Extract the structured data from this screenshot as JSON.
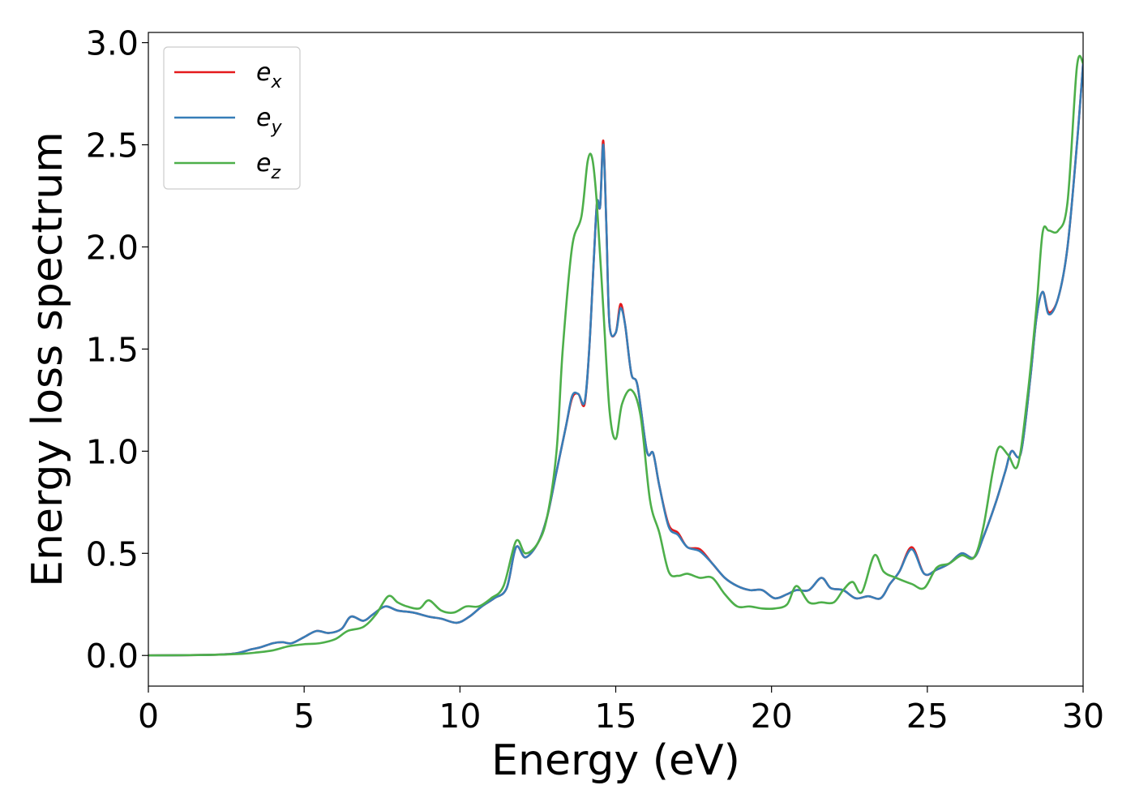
{
  "chart_data": {
    "type": "line",
    "xlabel": "Energy (eV)",
    "ylabel": "Energy loss spectrum",
    "xlim": [
      0,
      30
    ],
    "ylim": [
      -0.15,
      3.05
    ],
    "xticks": [
      0,
      5,
      10,
      15,
      20,
      25,
      30
    ],
    "xtick_labels": [
      "0",
      "5",
      "10",
      "15",
      "20",
      "25",
      "30"
    ],
    "yticks": [
      0.0,
      0.5,
      1.0,
      1.5,
      2.0,
      2.5,
      3.0
    ],
    "ytick_labels": [
      "0.0",
      "0.5",
      "1.0",
      "1.5",
      "2.0",
      "2.5",
      "3.0"
    ],
    "grid": false,
    "legend_position": "upper-left",
    "series": [
      {
        "name": "e_x",
        "label_base": "e",
        "label_sub": "x",
        "color": "#e41a1c",
        "x": [
          0,
          2,
          2.8,
          3.3,
          3.6,
          4.0,
          4.3,
          4.6,
          5.0,
          5.4,
          5.8,
          6.2,
          6.5,
          6.9,
          7.2,
          7.6,
          8.0,
          8.5,
          9.0,
          9.4,
          9.9,
          10.3,
          10.7,
          11.1,
          11.5,
          11.8,
          12.1,
          12.5,
          12.8,
          13.1,
          13.4,
          13.6,
          13.8,
          14.0,
          14.15,
          14.3,
          14.4,
          14.5,
          14.6,
          14.7,
          14.8,
          15.0,
          15.15,
          15.3,
          15.5,
          15.7,
          16.0,
          16.2,
          16.4,
          16.7,
          17.0,
          17.3,
          17.7,
          18.1,
          18.5,
          18.9,
          19.3,
          19.7,
          20.1,
          20.5,
          20.8,
          21.2,
          21.6,
          21.9,
          22.3,
          22.7,
          23.1,
          23.5,
          23.8,
          24.1,
          24.5,
          24.9,
          25.3,
          25.7,
          26.1,
          26.5,
          26.8,
          27.2,
          27.5,
          27.7,
          28.0,
          28.3,
          28.5,
          28.7,
          28.9,
          29.2,
          29.5,
          29.8,
          30.0
        ],
        "y": [
          0.0,
          0.003,
          0.01,
          0.03,
          0.04,
          0.06,
          0.065,
          0.06,
          0.09,
          0.12,
          0.11,
          0.13,
          0.19,
          0.17,
          0.2,
          0.24,
          0.22,
          0.21,
          0.19,
          0.18,
          0.16,
          0.19,
          0.24,
          0.28,
          0.33,
          0.53,
          0.48,
          0.55,
          0.68,
          0.9,
          1.12,
          1.26,
          1.28,
          1.23,
          1.5,
          1.95,
          2.22,
          2.2,
          2.52,
          2.1,
          1.62,
          1.58,
          1.72,
          1.62,
          1.38,
          1.32,
          1.0,
          0.99,
          0.83,
          0.64,
          0.6,
          0.53,
          0.52,
          0.45,
          0.38,
          0.34,
          0.32,
          0.32,
          0.28,
          0.3,
          0.32,
          0.32,
          0.38,
          0.33,
          0.32,
          0.28,
          0.29,
          0.28,
          0.35,
          0.41,
          0.53,
          0.4,
          0.42,
          0.45,
          0.5,
          0.48,
          0.58,
          0.75,
          0.9,
          1.0,
          0.99,
          1.35,
          1.65,
          1.78,
          1.68,
          1.75,
          2.0,
          2.5,
          2.9
        ]
      },
      {
        "name": "e_y",
        "label_base": "e",
        "label_sub": "y",
        "color": "#377eb8",
        "x": [
          0,
          2,
          2.8,
          3.3,
          3.6,
          4.0,
          4.3,
          4.6,
          5.0,
          5.4,
          5.8,
          6.2,
          6.5,
          6.9,
          7.2,
          7.6,
          8.0,
          8.5,
          9.0,
          9.4,
          9.9,
          10.3,
          10.7,
          11.1,
          11.5,
          11.8,
          12.1,
          12.5,
          12.8,
          13.1,
          13.4,
          13.6,
          13.8,
          14.0,
          14.15,
          14.3,
          14.4,
          14.5,
          14.6,
          14.7,
          14.8,
          15.0,
          15.15,
          15.3,
          15.5,
          15.7,
          16.0,
          16.2,
          16.4,
          16.7,
          17.0,
          17.3,
          17.7,
          18.1,
          18.5,
          18.9,
          19.3,
          19.7,
          20.1,
          20.5,
          20.8,
          21.2,
          21.6,
          21.9,
          22.3,
          22.7,
          23.1,
          23.5,
          23.8,
          24.1,
          24.5,
          24.9,
          25.3,
          25.7,
          26.1,
          26.5,
          26.8,
          27.2,
          27.5,
          27.7,
          28.0,
          28.3,
          28.5,
          28.7,
          28.9,
          29.2,
          29.5,
          29.8,
          30.0
        ],
        "y": [
          0.0,
          0.003,
          0.01,
          0.03,
          0.04,
          0.06,
          0.065,
          0.06,
          0.09,
          0.12,
          0.11,
          0.13,
          0.19,
          0.17,
          0.2,
          0.24,
          0.22,
          0.21,
          0.19,
          0.18,
          0.16,
          0.19,
          0.24,
          0.28,
          0.33,
          0.53,
          0.48,
          0.55,
          0.68,
          0.9,
          1.12,
          1.27,
          1.28,
          1.24,
          1.5,
          1.95,
          2.22,
          2.2,
          2.5,
          2.1,
          1.62,
          1.58,
          1.7,
          1.62,
          1.38,
          1.32,
          1.0,
          0.99,
          0.83,
          0.63,
          0.59,
          0.53,
          0.51,
          0.45,
          0.38,
          0.34,
          0.32,
          0.32,
          0.28,
          0.3,
          0.32,
          0.32,
          0.38,
          0.33,
          0.32,
          0.28,
          0.29,
          0.28,
          0.35,
          0.41,
          0.52,
          0.4,
          0.42,
          0.45,
          0.5,
          0.48,
          0.58,
          0.75,
          0.9,
          1.0,
          0.99,
          1.35,
          1.65,
          1.78,
          1.67,
          1.75,
          2.0,
          2.5,
          2.9
        ]
      },
      {
        "name": "e_z",
        "label_base": "e",
        "label_sub": "z",
        "color": "#4daf4a",
        "x": [
          0,
          2,
          3.0,
          3.5,
          4.0,
          4.5,
          5.0,
          5.5,
          6.0,
          6.4,
          6.9,
          7.3,
          7.7,
          8.0,
          8.3,
          8.7,
          9.0,
          9.4,
          9.8,
          10.2,
          10.6,
          11.0,
          11.4,
          11.8,
          12.1,
          12.5,
          12.8,
          13.1,
          13.3,
          13.6,
          13.9,
          14.1,
          14.25,
          14.4,
          14.6,
          14.8,
          15.0,
          15.2,
          15.5,
          15.8,
          16.1,
          16.4,
          16.7,
          17.0,
          17.3,
          17.7,
          18.1,
          18.5,
          18.9,
          19.3,
          19.7,
          20.1,
          20.5,
          20.8,
          21.2,
          21.6,
          22.0,
          22.3,
          22.6,
          22.9,
          23.3,
          23.6,
          24.0,
          24.5,
          24.9,
          25.3,
          25.7,
          26.1,
          26.5,
          26.8,
          27.1,
          27.3,
          27.6,
          27.9,
          28.2,
          28.5,
          28.7,
          28.9,
          29.2,
          29.5,
          29.8,
          30.0
        ],
        "y": [
          0.0,
          0.003,
          0.008,
          0.015,
          0.025,
          0.045,
          0.055,
          0.06,
          0.08,
          0.12,
          0.14,
          0.2,
          0.29,
          0.26,
          0.24,
          0.23,
          0.27,
          0.22,
          0.21,
          0.24,
          0.24,
          0.28,
          0.34,
          0.56,
          0.5,
          0.55,
          0.68,
          1.0,
          1.5,
          2.0,
          2.15,
          2.42,
          2.43,
          2.2,
          1.7,
          1.2,
          1.06,
          1.23,
          1.3,
          1.17,
          0.76,
          0.6,
          0.41,
          0.39,
          0.4,
          0.38,
          0.38,
          0.3,
          0.24,
          0.24,
          0.23,
          0.23,
          0.25,
          0.34,
          0.26,
          0.26,
          0.26,
          0.32,
          0.36,
          0.31,
          0.49,
          0.41,
          0.38,
          0.35,
          0.33,
          0.43,
          0.45,
          0.49,
          0.48,
          0.63,
          0.9,
          1.02,
          0.98,
          0.93,
          1.25,
          1.7,
          2.07,
          2.08,
          2.08,
          2.22,
          2.88,
          2.9
        ]
      }
    ]
  }
}
